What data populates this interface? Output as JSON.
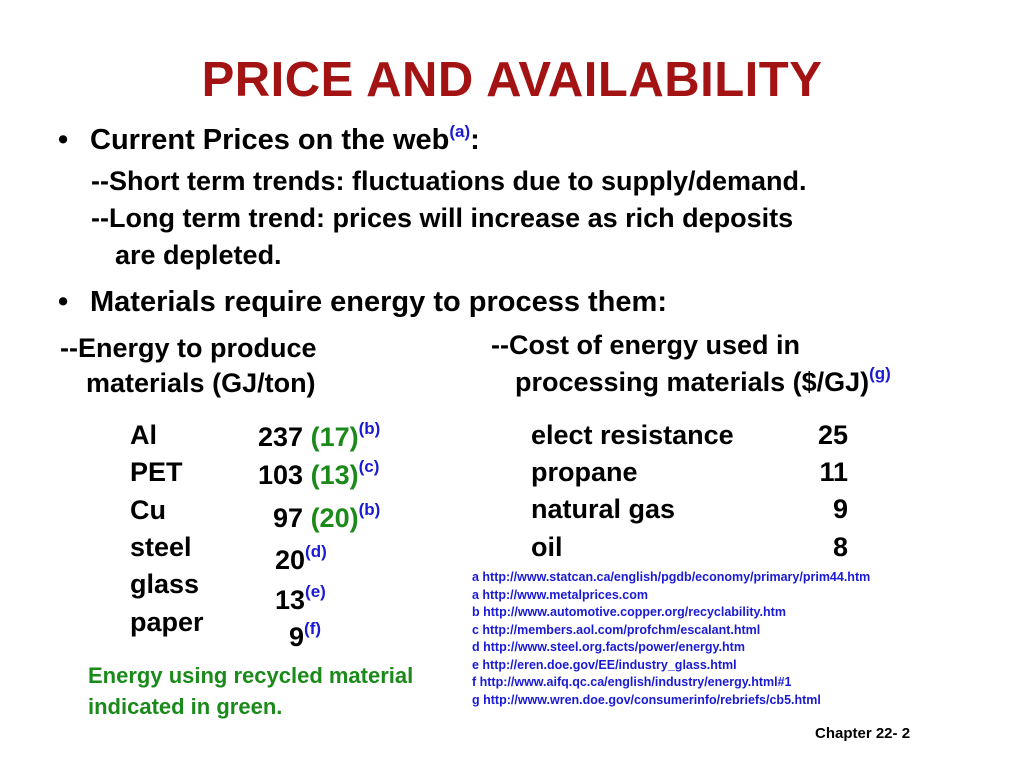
{
  "slide": {
    "title": "PRICE AND AVAILABILITY",
    "bullets": [
      {
        "symbol": "•",
        "text": "Current Prices on the web",
        "ref": "(a)",
        "suffix": ":",
        "sub_lines": [
          "--Short term trends:  fluctuations due to supply/demand.",
          "--Long term trend:  prices will increase as rich deposits",
          "are depleted."
        ]
      },
      {
        "symbol": "•",
        "text": "Materials require energy to process them:"
      }
    ],
    "left_column": {
      "heading_line1": "--Energy to produce",
      "heading_line2": "materials (GJ/ton)",
      "rows": [
        {
          "name": "Al",
          "value": "237",
          "recycled": "(17)",
          "ref": "(b)"
        },
        {
          "name": "PET",
          "value": "103",
          "recycled": "(13)",
          "ref": "(c)"
        },
        {
          "name": "Cu",
          "value": "97",
          "recycled": "(20)",
          "ref": "(b)"
        },
        {
          "name": "steel",
          "value": "20",
          "recycled": "",
          "ref": "(d)"
        },
        {
          "name": "glass",
          "value": "13",
          "recycled": "",
          "ref": "(e)"
        },
        {
          "name": "paper",
          "value": "9",
          "recycled": "",
          "ref": "(f)"
        }
      ]
    },
    "right_column": {
      "heading_line1": "--Cost of energy used in",
      "heading_line2": "processing materials ($/GJ)",
      "heading_ref": "(g)",
      "rows": [
        {
          "name": "elect resistance",
          "cost": "25"
        },
        {
          "name": "propane",
          "cost": "11"
        },
        {
          "name": "natural gas",
          "cost": "9"
        },
        {
          "name": "oil",
          "cost": "8"
        }
      ]
    },
    "green_note": "Energy using recycled material indicated in green.",
    "references": [
      "a  http://www.statcan.ca/english/pgdb/economy/primary/prim44.htm",
      "a  http://www.metalprices.com",
      "b  http://www.automotive.copper.org/recyclability.htm",
      "c  http://members.aol.com/profchm/escalant.html",
      "d  http://www.steel.org.facts/power/energy.htm",
      "e  http://eren.doe.gov/EE/industry_glass.html",
      "f  http://www.aifq.qc.ca/english/industry/energy.html#1",
      "g  http://www.wren.doe.gov/consumerinfo/rebriefs/cb5.html"
    ],
    "footer": "Chapter 22- 2",
    "colors": {
      "title": "#a31313",
      "reference": "#1a1ad4",
      "recycled": "#1b8a1b"
    }
  }
}
